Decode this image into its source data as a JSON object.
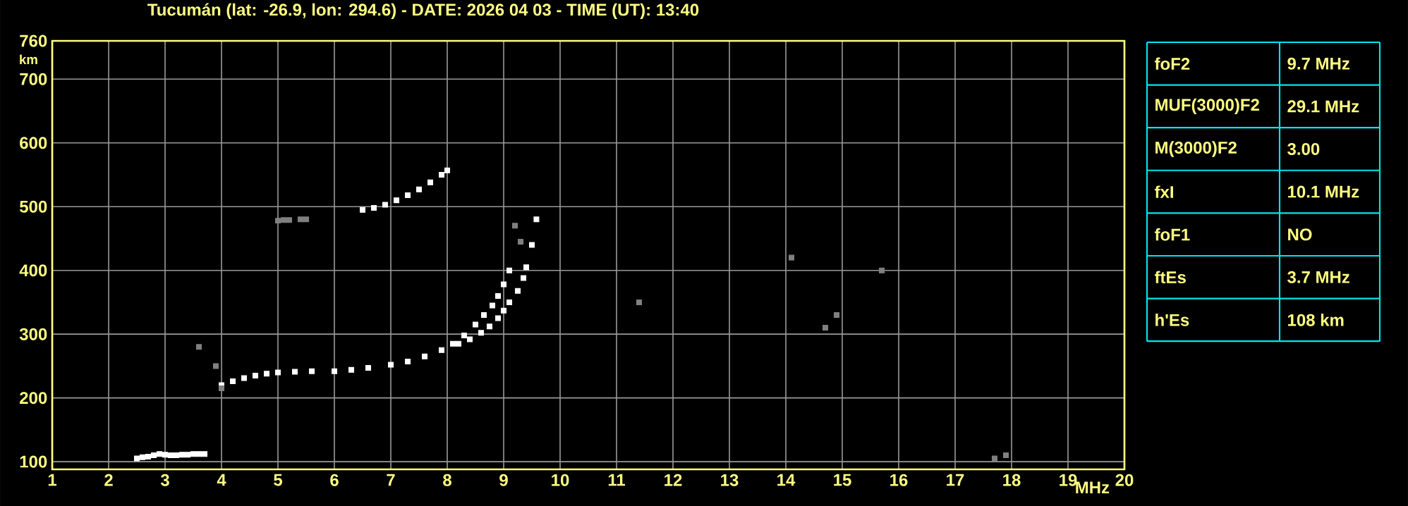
{
  "chart_data": {
    "type": "scatter",
    "title": "Tucumán (lat: -26.9, lon: 294.6) - DATE: 2026 04 03 - TIME (UT): 13:40",
    "xlabel": "MHz",
    "ylabel": "km",
    "xlim": [
      1,
      20
    ],
    "ylim": [
      88,
      760
    ],
    "xticks": [
      1,
      2,
      3,
      4,
      5,
      6,
      7,
      8,
      9,
      10,
      11,
      12,
      13,
      14,
      15,
      16,
      17,
      18,
      19,
      20
    ],
    "yticks": [
      100,
      200,
      300,
      400,
      500,
      600,
      700,
      760
    ],
    "grid": true,
    "marker": "square",
    "series": [
      {
        "color": "#ffffff",
        "x": [
          2.5,
          2.6,
          2.7,
          2.8,
          2.9,
          3.0,
          3.1,
          3.2,
          3.3,
          3.4,
          3.5,
          3.6,
          3.7
        ],
        "values": [
          105,
          107,
          108,
          110,
          112,
          111,
          110,
          110,
          111,
          111,
          112,
          112,
          112
        ]
      },
      {
        "color": "#ffffff",
        "x": [
          4.0,
          4.2,
          4.4,
          4.6,
          4.8,
          5.0,
          5.3,
          5.6,
          6.0,
          6.3,
          6.6,
          7.0,
          7.3,
          7.6,
          7.9,
          8.1,
          8.3,
          8.5,
          8.65,
          8.8,
          8.9,
          9.0,
          9.1
        ],
        "values": [
          220,
          226,
          231,
          235,
          238,
          240,
          241,
          242,
          242,
          244,
          247,
          252,
          257,
          265,
          275,
          285,
          298,
          315,
          330,
          345,
          360,
          378,
          400
        ]
      },
      {
        "color": "#ffffff",
        "x": [
          8.2,
          8.4,
          8.6,
          8.75,
          8.9,
          9.0,
          9.1,
          9.25,
          9.35,
          9.4,
          9.5,
          9.58
        ],
        "values": [
          285,
          292,
          302,
          312,
          325,
          337,
          350,
          368,
          388,
          405,
          440,
          480
        ]
      },
      {
        "color": "#ffffff",
        "x": [
          6.5,
          6.7,
          6.9,
          7.1,
          7.3,
          7.5,
          7.7,
          7.9,
          8.0
        ],
        "values": [
          495,
          498,
          503,
          510,
          518,
          527,
          538,
          550,
          557
        ]
      },
      {
        "color": "#808080",
        "x": [
          5.0,
          5.1,
          5.2,
          5.4,
          5.5,
          3.6,
          3.9,
          4.0,
          9.2,
          9.3,
          14.1,
          14.7,
          14.9,
          15.7,
          11.4,
          17.7,
          17.9
        ],
        "values": [
          478,
          479,
          479,
          480,
          480,
          280,
          250,
          215,
          470,
          445,
          420,
          310,
          330,
          400,
          350,
          105,
          110
        ]
      }
    ],
    "annotations": [
      "foF2",
      "9.7 MHz",
      "MUF(3000)F2",
      "29.1 MHz",
      "M(3000)F2",
      "3.00",
      "fxI",
      "10.1 MHz",
      "foF1",
      "NO",
      "ftEs",
      "3.7 MHz",
      "h'Es",
      "108 km"
    ]
  }
}
